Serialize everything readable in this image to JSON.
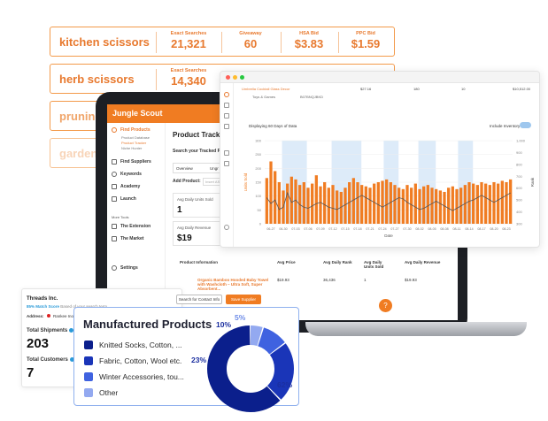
{
  "keywords": [
    {
      "name": "kitchen scissors",
      "stats": [
        {
          "label": "Exact Searches",
          "value": "21,321"
        },
        {
          "label": "Giveaway",
          "value": "60"
        },
        {
          "label": "HSA Bid",
          "value": "$3.83"
        },
        {
          "label": "PPC Bid",
          "value": "$1.59"
        }
      ]
    },
    {
      "name": "herb scissors",
      "stats": [
        {
          "label": "Exact Searches",
          "value": "14,340"
        }
      ]
    },
    {
      "name": "pruning"
    },
    {
      "name": "garden"
    }
  ],
  "app": {
    "brand": "Jungle Scout",
    "nav": {
      "find_products": "Find Products",
      "sub": [
        "Product Database",
        "Product Tracker",
        "Niche Hunter"
      ],
      "find_suppliers": "Find Suppliers",
      "keywords": "Keywords",
      "academy": "Academy",
      "launch": "Launch",
      "more_tools": "More Tools",
      "extension": "The Extension",
      "market": "The Market",
      "settings": "Settings"
    },
    "page_title": "Product Tracker",
    "search_tracked": "Search your Tracked Pro",
    "tabs": {
      "overview": "Overview",
      "ungr": "Ungr"
    },
    "add_product": "Add Product:",
    "add_placeholder": "Insert ASI",
    "metrics": [
      {
        "label": "Avg Daily Units Sold",
        "value": "1"
      },
      {
        "label": "Avg Daily Revenue",
        "value": "$19"
      }
    ],
    "table": {
      "headers": [
        "Product Information",
        "Avg Price",
        "Avg Daily Rank",
        "Avg Daily Units Sold",
        "Avg Daily Revenue"
      ],
      "row": {
        "name": "Organic Bamboo Hooded Baby Towel with Washcloth – Ultra Soft, Super Absorbent...",
        "price": "$19.93",
        "rank": "36,436",
        "units": "1",
        "revenue": "$19.93",
        "brand": "Baby",
        "asin": "B087N5WXJH"
      }
    }
  },
  "chart_window": {
    "product_link": "Umbrella Cocktail Glass Decor",
    "product_sub": "Toys & Games",
    "product_asin": "B07BNQJBKD",
    "columns": [
      "$27.16",
      "180",
      "10",
      "$10,512.00"
    ],
    "displaying": "Displaying 60 Days of Data",
    "include_inventory": "Include Inventory",
    "x_axis_label": "Date",
    "y_left_label": "Units Sold",
    "y_right_label": "Rank"
  },
  "chart_data": {
    "type": "bar",
    "title": "",
    "xlabel": "Date",
    "ylabel": "Units Sold",
    "y2label": "Rank",
    "ylim": [
      0,
      300
    ],
    "y_ticks": [
      "300",
      "250",
      "200",
      "150",
      "100",
      "50",
      "0"
    ],
    "y2_ticks": [
      "1,000",
      "900",
      "800",
      "700",
      "600",
      "500",
      "400",
      "300"
    ],
    "x_ticks": [
      "06-27",
      "06-30",
      "07-03",
      "07-06",
      "07-09",
      "07-12",
      "07-15",
      "07-18",
      "07-21",
      "07-24",
      "07-27",
      "07-30",
      "08-02",
      "08-05",
      "08-08",
      "08-11",
      "08-14",
      "08-17",
      "08-20",
      "08-23"
    ],
    "series": [
      {
        "values": [
          165,
          225,
          190,
          150,
          120,
          145,
          170,
          160,
          140,
          150,
          130,
          145,
          175,
          135,
          150,
          130,
          140,
          120,
          115,
          130,
          150,
          165,
          150,
          140,
          135,
          130,
          145,
          150,
          155,
          160,
          150,
          140,
          130,
          125,
          140,
          130,
          145,
          125,
          135,
          140,
          130,
          125,
          120,
          115,
          130,
          135,
          125,
          130,
          140,
          150,
          145,
          140,
          150,
          145,
          140,
          150,
          145,
          155,
          150,
          160
        ]
      },
      {
        "values": [
          520,
          470,
          500,
          420,
          440,
          560,
          480,
          500,
          460,
          440,
          430,
          450,
          470,
          480,
          460,
          440,
          430,
          420,
          440,
          460,
          480,
          500,
          520,
          540,
          520,
          500,
          480,
          460,
          440,
          460,
          480,
          500,
          520,
          510,
          480,
          460,
          440,
          420,
          430,
          450,
          470,
          490,
          470,
          450,
          430,
          410,
          430,
          450,
          470,
          490,
          500,
          520,
          540,
          520,
          500,
          480,
          500,
          520,
          540,
          560
        ]
      }
    ]
  },
  "supplier": {
    "name": "Threads Inc.",
    "match": "85% Match Score",
    "match_sub": "Based of your search term",
    "address_label": "Address:",
    "address_value": "Rankee Inovations",
    "total_shipments_label": "Total Shipments",
    "total_shipments": "203",
    "total_customers_label": "Total Customers",
    "total_customers": "7",
    "contact_button": "Search for Contact Info",
    "save_button": "Save Supplier"
  },
  "manufactured": {
    "title": "Manufactured Products",
    "items": [
      {
        "label": "Knitted Socks, Cotton, ...",
        "color": "#0b1f8c"
      },
      {
        "label": "Fabric, Cotton, Wool etc.",
        "color": "#1a35b8"
      },
      {
        "label": "Winter Accessories, tou...",
        "color": "#3f62e0"
      },
      {
        "label": "Other",
        "color": "#93a9f0"
      }
    ],
    "slices": [
      {
        "label": "62%",
        "value": 62,
        "color": "#0b1f8c"
      },
      {
        "label": "23%",
        "value": 23,
        "color": "#1a35b8"
      },
      {
        "label": "10%",
        "value": 10,
        "color": "#3f62e0"
      },
      {
        "label": "5%",
        "value": 5,
        "color": "#93a9f0"
      }
    ]
  },
  "colors": {
    "orange": "#f07c22",
    "blue": "#1a35b8"
  }
}
